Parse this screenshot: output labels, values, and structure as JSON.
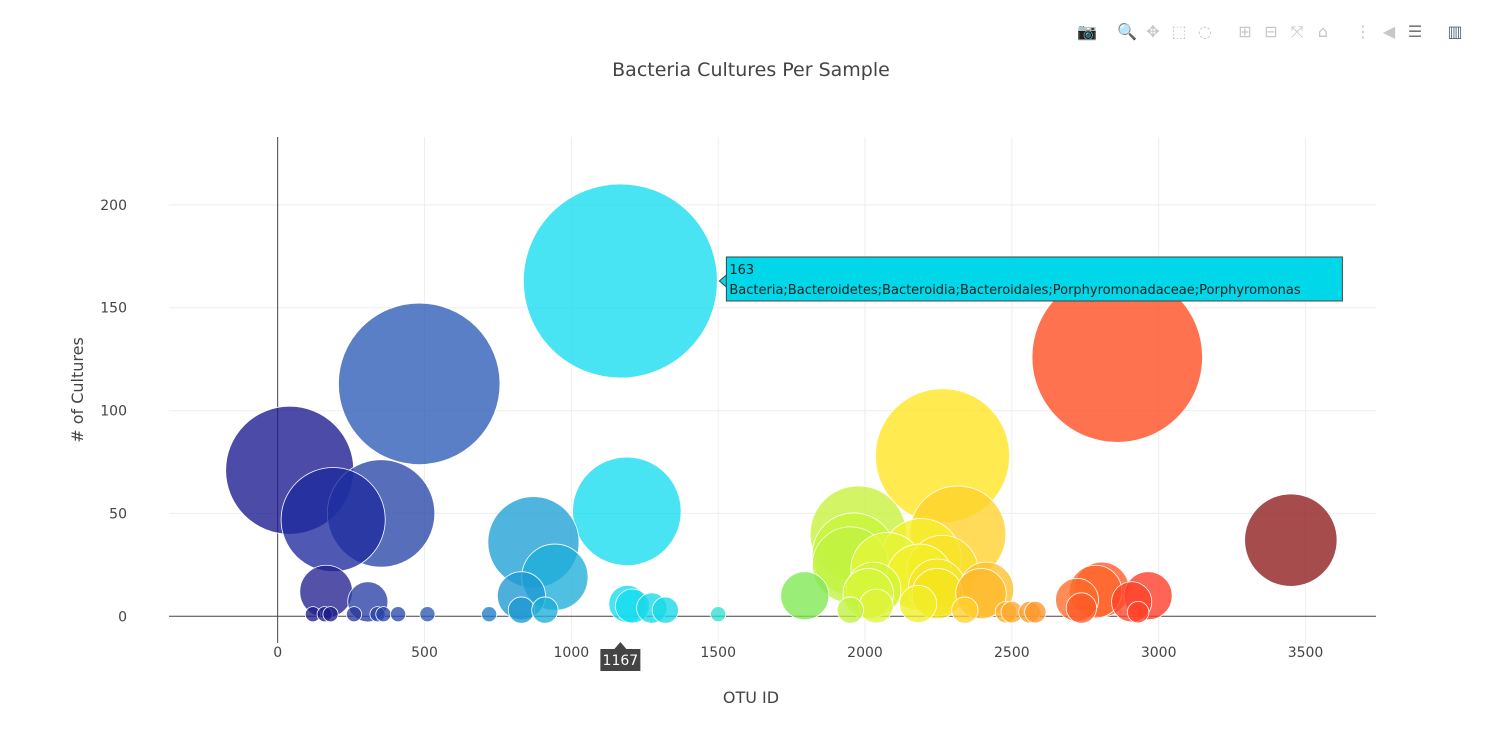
{
  "modebar": {
    "buttons": [
      {
        "name": "camera-icon",
        "glyph": "📷"
      },
      {
        "name": "zoom-icon",
        "glyph": "🔍"
      },
      {
        "name": "pan-icon",
        "glyph": "✥"
      },
      {
        "name": "box-select-icon",
        "glyph": "⬚"
      },
      {
        "name": "lasso-select-icon",
        "glyph": "◌"
      },
      {
        "name": "zoom-in-icon",
        "glyph": "⊞"
      },
      {
        "name": "zoom-out-icon",
        "glyph": "⊟"
      },
      {
        "name": "autoscale-icon",
        "glyph": "⤧"
      },
      {
        "name": "reset-axes-icon",
        "glyph": "⌂"
      },
      {
        "name": "spike-lines-icon",
        "glyph": "⋮"
      },
      {
        "name": "hover-closest-icon",
        "glyph": "◀"
      },
      {
        "name": "hover-compare-icon",
        "glyph": "☰"
      },
      {
        "name": "plotly-logo-icon",
        "glyph": "▥"
      }
    ]
  },
  "chart_data": {
    "type": "scatter",
    "subtype": "bubble",
    "title": "Bacteria Cultures Per Sample",
    "xlabel": "OTU ID",
    "ylabel": "# of Cultures",
    "xlim": [
      -370,
      3740
    ],
    "ylim": [
      -13,
      233
    ],
    "xticks": [
      0,
      500,
      1000,
      1500,
      2000,
      2500,
      3000,
      3500
    ],
    "yticks": [
      0,
      50,
      100,
      150,
      200
    ],
    "grid": true,
    "colorscale": "Jet",
    "points": [
      {
        "x": 41,
        "y": 71,
        "color": "#1a1a8f"
      },
      {
        "x": 189,
        "y": 47,
        "color": "#1e2a9e"
      },
      {
        "x": 352,
        "y": 50,
        "color": "#2845a8"
      },
      {
        "x": 482,
        "y": 113,
        "color": "#2d5bb6"
      },
      {
        "x": 165,
        "y": 12,
        "color": "#222090"
      },
      {
        "x": 307,
        "y": 7,
        "color": "#2a3fa6"
      },
      {
        "x": 1167,
        "y": 163,
        "color": "#14dcef"
      },
      {
        "x": 1189,
        "y": 51,
        "color": "#14dcef"
      },
      {
        "x": 871,
        "y": 36,
        "color": "#1ea0d6"
      },
      {
        "x": 944,
        "y": 19,
        "color": "#1eaed8"
      },
      {
        "x": 830,
        "y": 10,
        "color": "#1e98d2"
      },
      {
        "x": 1191,
        "y": 6,
        "color": "#14dcef"
      },
      {
        "x": 1208,
        "y": 5,
        "color": "#14dcef"
      },
      {
        "x": 1274,
        "y": 4,
        "color": "#16d8e8"
      },
      {
        "x": 1795,
        "y": 10,
        "color": "#7ee850"
      },
      {
        "x": 1977,
        "y": 40,
        "color": "#c6f23a"
      },
      {
        "x": 1962,
        "y": 30,
        "color": "#c8f53a"
      },
      {
        "x": 1950,
        "y": 25,
        "color": "#c0f240"
      },
      {
        "x": 2029,
        "y": 13,
        "color": "#d2f43a"
      },
      {
        "x": 2011,
        "y": 11,
        "color": "#d6f63a"
      },
      {
        "x": 2038,
        "y": 5,
        "color": "#dff43a"
      },
      {
        "x": 2076,
        "y": 23,
        "color": "#e4f53a"
      },
      {
        "x": 2264,
        "y": 78,
        "color": "#ffe51e"
      },
      {
        "x": 2316,
        "y": 40,
        "color": "#ffd12a"
      },
      {
        "x": 2191,
        "y": 28,
        "color": "#f5ef26"
      },
      {
        "x": 2186,
        "y": 19,
        "color": "#f3ef28"
      },
      {
        "x": 2264,
        "y": 22,
        "color": "#f8e22a"
      },
      {
        "x": 2245,
        "y": 14,
        "color": "#f6e62a"
      },
      {
        "x": 2246,
        "y": 11,
        "color": "#f4e41c"
      },
      {
        "x": 2181,
        "y": 6,
        "color": "#f0ee28"
      },
      {
        "x": 2413,
        "y": 13,
        "color": "#ffc02a"
      },
      {
        "x": 2395,
        "y": 11,
        "color": "#ffb82a"
      },
      {
        "x": 2859,
        "y": 126,
        "color": "#ff4a1e"
      },
      {
        "x": 2806,
        "y": 13,
        "color": "#ff5a28"
      },
      {
        "x": 2785,
        "y": 12,
        "color": "#ff6428"
      },
      {
        "x": 2722,
        "y": 8,
        "color": "#ff6a28"
      },
      {
        "x": 2964,
        "y": 10,
        "color": "#ff3a28"
      },
      {
        "x": 2908,
        "y": 7,
        "color": "#ff4228"
      },
      {
        "x": 2737,
        "y": 4,
        "color": "#ff5a28"
      },
      {
        "x": 3450,
        "y": 37,
        "color": "#8e1a1a"
      },
      {
        "x": 120,
        "y": 1,
        "color": "#1e1e8a"
      },
      {
        "x": 160,
        "y": 1,
        "color": "#1e1e8a"
      },
      {
        "x": 180,
        "y": 1,
        "color": "#1e1e8a"
      },
      {
        "x": 260,
        "y": 1,
        "color": "#2a3aa0"
      },
      {
        "x": 340,
        "y": 1,
        "color": "#2a44a8"
      },
      {
        "x": 360,
        "y": 1,
        "color": "#2a44a8"
      },
      {
        "x": 410,
        "y": 1,
        "color": "#2a4aad"
      },
      {
        "x": 510,
        "y": 1,
        "color": "#2d58b3"
      },
      {
        "x": 720,
        "y": 1,
        "color": "#207cc8"
      },
      {
        "x": 830,
        "y": 3,
        "color": "#1e98d2"
      },
      {
        "x": 910,
        "y": 3,
        "color": "#1eaed8"
      },
      {
        "x": 1320,
        "y": 3,
        "color": "#16d8e8"
      },
      {
        "x": 1500,
        "y": 1,
        "color": "#30e0d0"
      },
      {
        "x": 1950,
        "y": 3,
        "color": "#c0f240"
      },
      {
        "x": 2340,
        "y": 3,
        "color": "#ffd12a"
      },
      {
        "x": 2480,
        "y": 2,
        "color": "#ffb02a"
      },
      {
        "x": 2500,
        "y": 2,
        "color": "#ffa82a"
      },
      {
        "x": 2560,
        "y": 2,
        "color": "#ff9a2a"
      },
      {
        "x": 2580,
        "y": 2,
        "color": "#ff962a"
      },
      {
        "x": 2930,
        "y": 2,
        "color": "#ff4228"
      }
    ],
    "hover": {
      "x": 1167,
      "y": 163,
      "value_text": "163",
      "label_text": "Bacteria;Bacteroidetes;Bacteroidia;Bacteroidales;Porphyromonadaceae;Porphyromonas",
      "x_label": "1167",
      "bg_color": "#00d8ea",
      "axis_label_bg": "#444444"
    }
  }
}
